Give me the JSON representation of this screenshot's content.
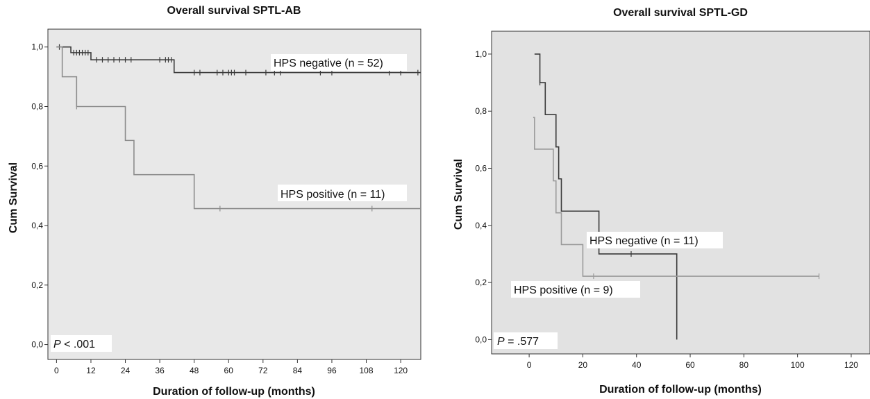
{
  "chart_data": [
    {
      "type": "line",
      "subtype": "kaplan-meier",
      "title": "Overall survival SPTL-AB",
      "xlabel": "Duration of follow-up (months)",
      "ylabel": "Cum Survival",
      "xlim": [
        -3,
        127
      ],
      "ylim": [
        -0.05,
        1.06
      ],
      "xticks": [
        0,
        12,
        24,
        36,
        48,
        60,
        72,
        84,
        96,
        108,
        120
      ],
      "yticks": [
        "0,0",
        "0,2",
        "0,4",
        "0,6",
        "0,8",
        "1,0"
      ],
      "yticks_values": [
        0,
        0.2,
        0.4,
        0.6,
        0.8,
        1.0
      ],
      "background": "#e8e8e8",
      "p_value": {
        "symbol": "P",
        "text": " < .001"
      },
      "series": [
        {
          "name": "HPS negative (n = 52)",
          "color": "#3a3a3a",
          "steps": [
            [
              0,
              1.0
            ],
            [
              5,
              0.981
            ],
            [
              12,
              0.957
            ],
            [
              41,
              0.914
            ],
            [
              127,
              0.914
            ]
          ],
          "censored": [
            [
              1,
              1.0
            ],
            [
              6,
              0.981
            ],
            [
              7,
              0.981
            ],
            [
              8,
              0.981
            ],
            [
              9,
              0.981
            ],
            [
              10,
              0.981
            ],
            [
              11,
              0.981
            ],
            [
              14,
              0.957
            ],
            [
              16,
              0.957
            ],
            [
              18,
              0.957
            ],
            [
              20,
              0.957
            ],
            [
              22,
              0.957
            ],
            [
              24,
              0.957
            ],
            [
              26,
              0.957
            ],
            [
              36,
              0.957
            ],
            [
              38,
              0.957
            ],
            [
              39,
              0.957
            ],
            [
              40,
              0.957
            ],
            [
              48,
              0.914
            ],
            [
              50,
              0.914
            ],
            [
              56,
              0.914
            ],
            [
              58,
              0.914
            ],
            [
              60,
              0.914
            ],
            [
              61,
              0.914
            ],
            [
              62,
              0.914
            ],
            [
              66,
              0.914
            ],
            [
              73,
              0.914
            ],
            [
              76,
              0.914
            ],
            [
              78,
              0.914
            ],
            [
              92,
              0.914
            ],
            [
              96,
              0.914
            ],
            [
              116,
              0.914
            ],
            [
              120,
              0.914
            ],
            [
              126,
              0.914
            ]
          ]
        },
        {
          "name": "HPS positive (n = 11)",
          "color": "#8c8c8c",
          "steps": [
            [
              0,
              1.0
            ],
            [
              2,
              0.9
            ],
            [
              7,
              0.8
            ],
            [
              24,
              0.686
            ],
            [
              27,
              0.571
            ],
            [
              48,
              0.457
            ],
            [
              127,
              0.457
            ]
          ],
          "censored": [
            [
              7,
              0.8
            ],
            [
              57,
              0.457
            ],
            [
              110,
              0.457
            ]
          ]
        }
      ]
    },
    {
      "type": "line",
      "subtype": "kaplan-meier",
      "title": "Overall survival SPTL-GD",
      "xlabel": "Duration of follow-up (months)",
      "ylabel": "Cum Survival",
      "xlim": [
        -14,
        127
      ],
      "ylim": [
        -0.05,
        1.08
      ],
      "xticks": [
        0,
        20,
        40,
        60,
        80,
        100,
        120
      ],
      "yticks": [
        "0,0",
        "0,2",
        "0,4",
        "0,6",
        "0,8",
        "1,0"
      ],
      "yticks_values": [
        0,
        0.2,
        0.4,
        0.6,
        0.8,
        1.0
      ],
      "background": "#e2e2e2",
      "p_value": {
        "symbol": "P",
        "text": " = .577"
      },
      "series": [
        {
          "name": "HPS negative (n = 11)",
          "color": "#3a3a3a",
          "steps": [
            [
              2,
              1.0
            ],
            [
              4,
              0.9
            ],
            [
              6,
              0.788
            ],
            [
              10,
              0.675
            ],
            [
              11,
              0.563
            ],
            [
              12,
              0.45
            ],
            [
              26,
              0.3
            ],
            [
              55,
              0.0
            ]
          ],
          "censored": [
            [
              4,
              0.9
            ],
            [
              38,
              0.3
            ]
          ]
        },
        {
          "name": "HPS positive (n = 9)",
          "color": "#9a9a9a",
          "steps": [
            [
              1.5,
              0.778
            ],
            [
              2,
              0.667
            ],
            [
              9,
              0.556
            ],
            [
              10,
              0.444
            ],
            [
              12,
              0.333
            ],
            [
              20,
              0.222
            ],
            [
              108,
              0.222
            ]
          ],
          "censored": [
            [
              24,
              0.222
            ],
            [
              108,
              0.222
            ]
          ]
        }
      ]
    }
  ]
}
